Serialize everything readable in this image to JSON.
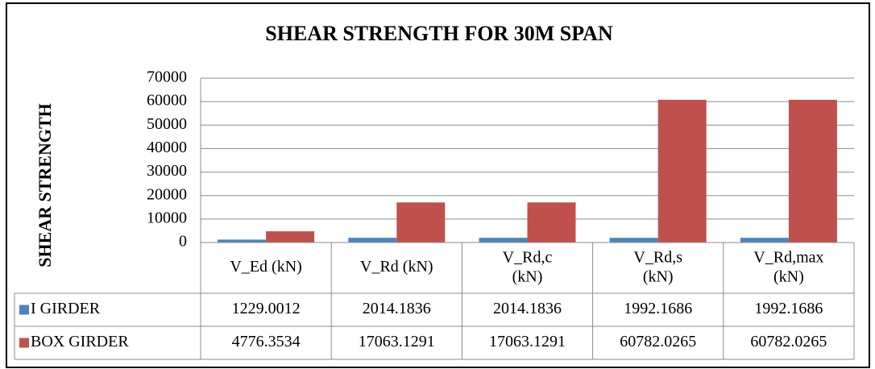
{
  "chart_data": {
    "type": "bar",
    "title": "SHEAR STRENGTH  FOR 30M SPAN",
    "y_label": "SHEAR STRENGTH",
    "categories": [
      "V_Ed (kN)",
      "V_Rd (kN)",
      "V_Rd,c (kN)",
      "V_Rd,s (kN)",
      "V_Rd,max (kN)"
    ],
    "series": [
      {
        "name": "I GIRDER",
        "color": "#4f81bd",
        "values": [
          1229.0012,
          2014.1836,
          2014.1836,
          1992.1686,
          1992.1686
        ]
      },
      {
        "name": "BOX GIRDER",
        "color": "#c0504d",
        "values": [
          4776.3534,
          17063.1291,
          17063.1291,
          60782.0265,
          60782.0265
        ]
      }
    ],
    "ylim": [
      0,
      70000
    ],
    "yticks": [
      0,
      10000,
      20000,
      30000,
      40000,
      50000,
      60000,
      70000
    ],
    "grid": true,
    "data_table": true
  }
}
